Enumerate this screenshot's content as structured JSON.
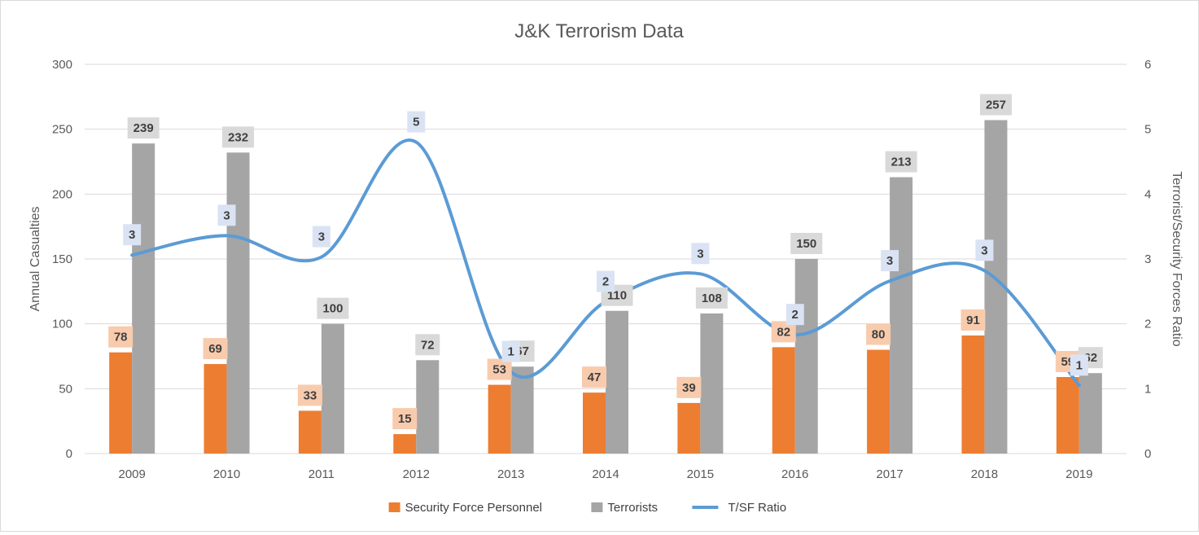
{
  "chart_data": {
    "type": "bar",
    "title": "J&K Terrorism Data",
    "ylabel": "Annual Casualties",
    "y2label": "Terrorist/Security Forces Ratio",
    "categories": [
      "2009",
      "2010",
      "2011",
      "2012",
      "2013",
      "2014",
      "2015",
      "2016",
      "2017",
      "2018",
      "2019"
    ],
    "ylim": [
      0,
      300
    ],
    "yticks": [
      "0",
      "50",
      "100",
      "150",
      "200",
      "250",
      "300"
    ],
    "y2lim": [
      0,
      6
    ],
    "y2ticks": [
      "0",
      "1",
      "2",
      "3",
      "4",
      "5",
      "6"
    ],
    "grid": true,
    "legend_position": "bottom",
    "series": [
      {
        "name": "Security Force Personnel",
        "kind": "bar",
        "axis": "left",
        "color": "#ed7d31",
        "label_bg": "#f8cbad",
        "values": [
          78,
          69,
          33,
          15,
          53,
          47,
          39,
          82,
          80,
          91,
          59
        ],
        "labels": [
          "78",
          "69",
          "33",
          "15",
          "53",
          "47",
          "39",
          "82",
          "80",
          "91",
          "59"
        ]
      },
      {
        "name": "Terrorists",
        "kind": "bar",
        "axis": "left",
        "color": "#a5a5a5",
        "label_bg": "#d9d9d9",
        "values": [
          239,
          232,
          100,
          72,
          67,
          110,
          108,
          150,
          213,
          257,
          62
        ],
        "labels": [
          "239",
          "232",
          "100",
          "72",
          "67",
          "110",
          "108",
          "150",
          "213",
          "257",
          "62"
        ]
      },
      {
        "name": "T/SF Ratio",
        "kind": "line",
        "axis": "right",
        "smooth": true,
        "color": "#5b9bd5",
        "label_bg": "#dae3f3",
        "values": [
          3.06,
          3.36,
          3.03,
          4.8,
          1.26,
          2.34,
          2.77,
          1.83,
          2.66,
          2.82,
          1.05
        ],
        "labels": [
          "3",
          "3",
          "3",
          "5",
          "1",
          "2",
          "3",
          "2",
          "3",
          "3",
          "1"
        ]
      }
    ]
  }
}
